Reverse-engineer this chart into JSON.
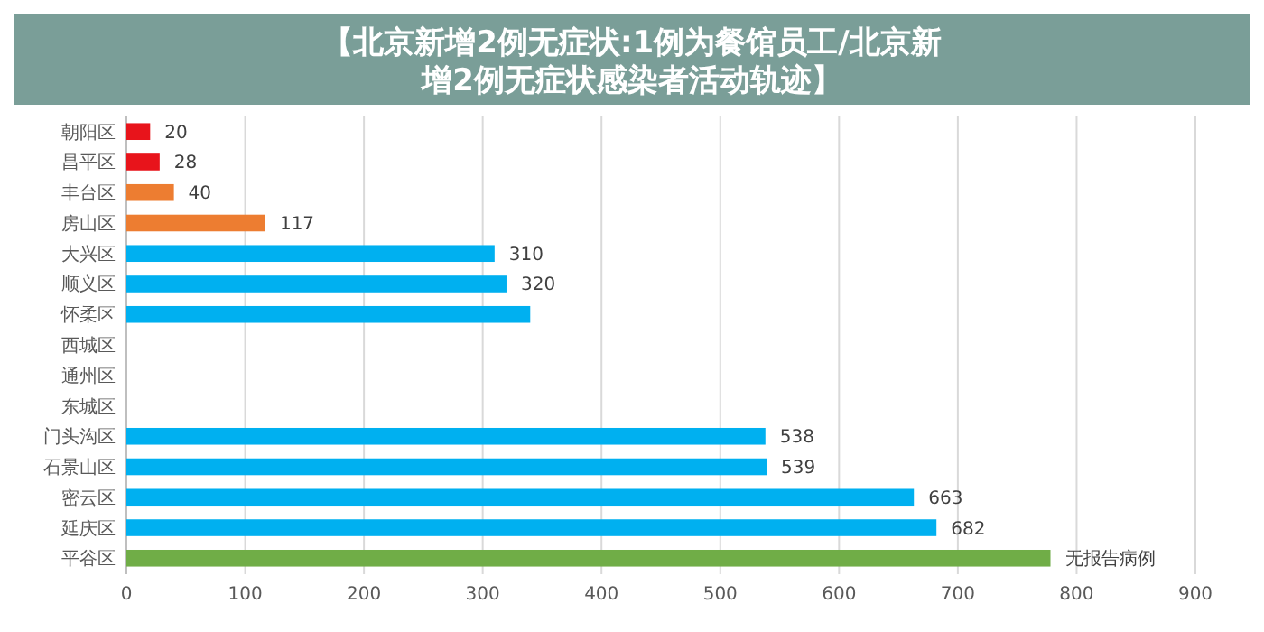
{
  "chart_data": {
    "type": "bar",
    "orientation": "horizontal",
    "title": "【北京新增2例无症状:1例为餐馆员工/北京新增2例无症状感染者活动轨迹】",
    "categories": [
      "朝阳区",
      "昌平区",
      "丰台区",
      "房山区",
      "大兴区",
      "顺义区",
      "怀柔区",
      "西城区",
      "通州区",
      "东城区",
      "门头沟区",
      "石景山区",
      "密云区",
      "延庆区",
      "平谷区"
    ],
    "values": [
      20,
      28,
      40,
      117,
      310,
      320,
      340,
      null,
      null,
      null,
      538,
      539,
      663,
      682,
      778
    ],
    "colors": [
      "#e8141b",
      "#e8141b",
      "#ed7d31",
      "#ed7d31",
      "#00b0f0",
      "#00b0f0",
      "#00b0f0",
      null,
      null,
      null,
      "#00b0f0",
      "#00b0f0",
      "#00b0f0",
      "#00b0f0",
      "#70ad47"
    ],
    "value_labels": [
      "20",
      "28",
      "40",
      "117",
      "310",
      "320",
      null,
      null,
      null,
      null,
      "538",
      "539",
      "663",
      "682",
      "无报告病例"
    ],
    "xlim": [
      0,
      900
    ],
    "xticks": [
      0,
      100,
      200,
      300,
      400,
      500,
      600,
      700,
      800,
      900
    ],
    "grid": "x"
  }
}
